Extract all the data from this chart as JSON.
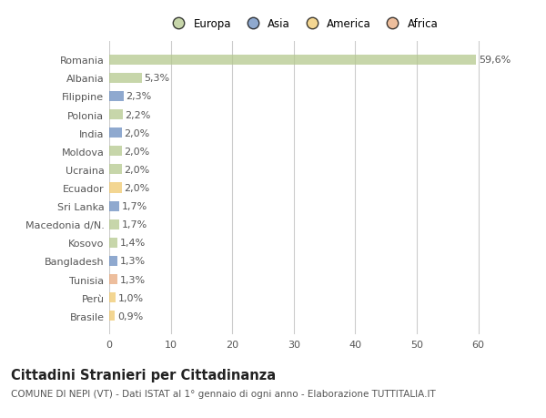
{
  "categories": [
    "Romania",
    "Albania",
    "Filippine",
    "Polonia",
    "India",
    "Moldova",
    "Ucraina",
    "Ecuador",
    "Sri Lanka",
    "Macedonia d/N.",
    "Kosovo",
    "Bangladesh",
    "Tunisia",
    "Perù",
    "Brasile"
  ],
  "values": [
    59.6,
    5.3,
    2.3,
    2.2,
    2.0,
    2.0,
    2.0,
    2.0,
    1.7,
    1.7,
    1.4,
    1.3,
    1.3,
    1.0,
    0.9
  ],
  "labels": [
    "59,6%",
    "5,3%",
    "2,3%",
    "2,2%",
    "2,0%",
    "2,0%",
    "2,0%",
    "2,0%",
    "1,7%",
    "1,7%",
    "1,4%",
    "1,3%",
    "1,3%",
    "1,0%",
    "0,9%"
  ],
  "continents": [
    "Europa",
    "Europa",
    "Asia",
    "Europa",
    "Asia",
    "Europa",
    "Europa",
    "America",
    "Asia",
    "Europa",
    "Europa",
    "Asia",
    "Africa",
    "America",
    "America"
  ],
  "continent_colors": {
    "Europa": "#b5c98e",
    "Asia": "#6a8dc0",
    "America": "#f0c96e",
    "Africa": "#e8a87c"
  },
  "legend_labels": [
    "Europa",
    "Asia",
    "America",
    "Africa"
  ],
  "legend_colors": [
    "#b5c98e",
    "#6a8dc0",
    "#f0c96e",
    "#e8a87c"
  ],
  "title": "Cittadini Stranieri per Cittadinanza",
  "subtitle": "COMUNE DI NEPI (VT) - Dati ISTAT al 1° gennaio di ogni anno - Elaborazione TUTTITALIA.IT",
  "xlim": [
    0,
    63
  ],
  "xticks": [
    0,
    10,
    20,
    30,
    40,
    50,
    60
  ],
  "background_color": "#ffffff",
  "plot_bg_color": "#ffffff",
  "bar_alpha": 0.75,
  "grid_color": "#e0e0e0",
  "label_fontsize": 8,
  "tick_fontsize": 8,
  "title_fontsize": 10.5,
  "subtitle_fontsize": 7.5
}
